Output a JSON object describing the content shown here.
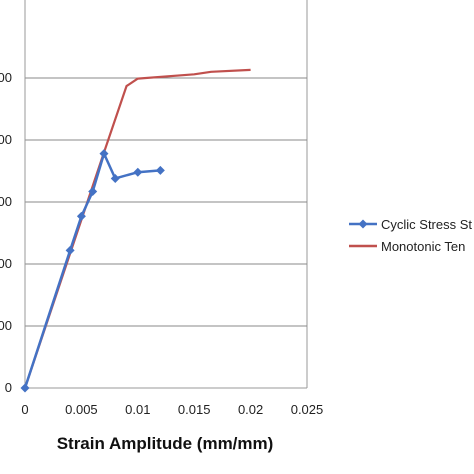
{
  "chart_data": {
    "type": "line",
    "xlabel": "Strain Amplitude (mm/mm)",
    "ylabel": "",
    "xlim": [
      0,
      0.025
    ],
    "ylim": [
      0,
      600
    ],
    "x_ticks": [
      0,
      0.005,
      0.01,
      0.015,
      0.02,
      0.025
    ],
    "x_tick_labels": [
      "0",
      "0.005",
      "0.01",
      "0.015",
      "0.02",
      "0.025"
    ],
    "y_ticks": [
      0,
      100,
      200,
      300,
      400,
      500
    ],
    "y_tick_labels": [
      "0",
      "00",
      "00",
      "00",
      "00",
      "00"
    ],
    "grid": "horizontal",
    "legend_position": "right",
    "series": [
      {
        "name": "Cyclic Stress St",
        "color": "#4472C4",
        "marker": "diamond",
        "x": [
          0,
          0.004,
          0.005,
          0.006,
          0.007,
          0.008,
          0.01,
          0.012
        ],
        "y": [
          0,
          222,
          277,
          317,
          378,
          338,
          348,
          351
        ]
      },
      {
        "name": "Monotonic Ten",
        "color": "#C0504D",
        "marker": "none",
        "x": [
          0,
          0.007,
          0.009,
          0.01,
          0.015,
          0.0165,
          0.02
        ],
        "y": [
          0,
          380,
          487,
          499,
          506,
          510,
          513
        ]
      }
    ]
  }
}
